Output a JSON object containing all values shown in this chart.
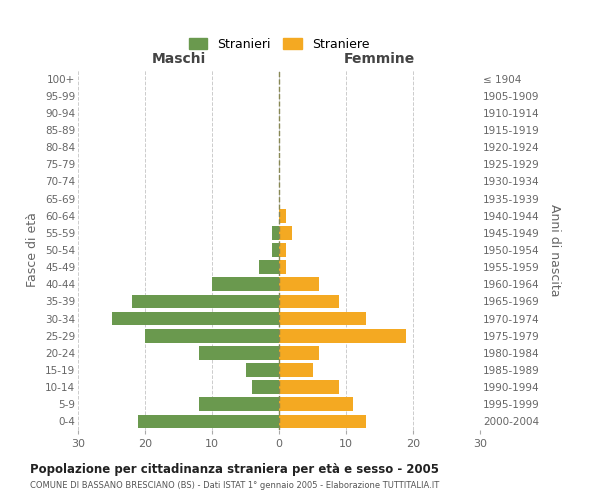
{
  "age_groups_bottom_to_top": [
    "0-4",
    "5-9",
    "10-14",
    "15-19",
    "20-24",
    "25-29",
    "30-34",
    "35-39",
    "40-44",
    "45-49",
    "50-54",
    "55-59",
    "60-64",
    "65-69",
    "70-74",
    "75-79",
    "80-84",
    "85-89",
    "90-94",
    "95-99",
    "100+"
  ],
  "birth_years_bottom_to_top": [
    "2000-2004",
    "1995-1999",
    "1990-1994",
    "1985-1989",
    "1980-1984",
    "1975-1979",
    "1970-1974",
    "1965-1969",
    "1960-1964",
    "1955-1959",
    "1950-1954",
    "1945-1949",
    "1940-1944",
    "1935-1939",
    "1930-1934",
    "1925-1929",
    "1920-1924",
    "1915-1919",
    "1910-1914",
    "1905-1909",
    "≤ 1904"
  ],
  "maschi_bottom_to_top": [
    21,
    12,
    4,
    5,
    12,
    20,
    25,
    22,
    10,
    3,
    1,
    1,
    0,
    0,
    0,
    0,
    0,
    0,
    0,
    0,
    0
  ],
  "femmine_bottom_to_top": [
    13,
    11,
    9,
    5,
    6,
    19,
    13,
    9,
    6,
    1,
    1,
    2,
    1,
    0,
    0,
    0,
    0,
    0,
    0,
    0,
    0
  ],
  "male_color": "#6a994e",
  "female_color": "#f4a922",
  "background_color": "#ffffff",
  "grid_color": "#cccccc",
  "title": "Popolazione per cittadinanza straniera per età e sesso - 2005",
  "subtitle": "COMUNE DI BASSANO BRESCIANO (BS) - Dati ISTAT 1° gennaio 2005 - Elaborazione TUTTITALIA.IT",
  "left_label": "Maschi",
  "right_label": "Femmine",
  "ylabel_left": "Fasce di età",
  "ylabel_right": "Anni di nascita",
  "legend_male": "Stranieri",
  "legend_female": "Straniere",
  "xlim": 30,
  "center_line_color": "#888855"
}
